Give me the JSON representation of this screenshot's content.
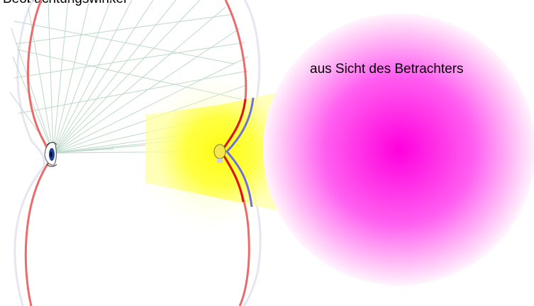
{
  "top_cut_text": "Beobachtungswinkel",
  "caption": "aus Sicht des Betrachters",
  "colors": {
    "background": "#ffffff",
    "outer_curve": "#e8e8f4",
    "red_curve": "#ee6a6a",
    "red_highlight": "#dd1111",
    "blue_curve": "#6f6fe0",
    "sight_lines": "#bcd9c9",
    "yellow_glow": "#ffff00",
    "yellow_dot": "#f6e84a",
    "magenta_glow": "#ff00dd",
    "eye_iris": "#1b3f9a"
  },
  "icons": {
    "observer": "eye-icon",
    "light_source": "light-dot-icon"
  }
}
